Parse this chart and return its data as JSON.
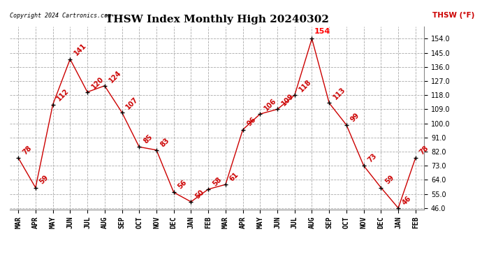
{
  "title": "THSW Index Monthly High 20240302",
  "copyright": "Copyright 2024 Cartronics.com",
  "legend_label": "THSW (°F)",
  "categories": [
    "MAR",
    "APR",
    "MAY",
    "JUN",
    "JUL",
    "AUG",
    "SEP",
    "OCT",
    "NOV",
    "DEC",
    "JAN",
    "FEB",
    "MAR",
    "APR",
    "MAY",
    "JUN",
    "JUL",
    "AUG",
    "SEP",
    "OCT",
    "NOV",
    "DEC",
    "JAN",
    "FEB"
  ],
  "values": [
    78,
    59,
    112,
    141,
    120,
    124,
    107,
    85,
    83,
    56,
    50,
    58,
    61,
    96,
    106,
    109,
    118,
    154,
    113,
    99,
    73,
    59,
    46,
    78
  ],
  "line_color": "#cc0000",
  "marker_color": "#000000",
  "label_color": "#cc0000",
  "highlight_index": 17,
  "ylim_min": 46.0,
  "ylim_max": 154.0,
  "yticks": [
    46.0,
    55.0,
    64.0,
    73.0,
    82.0,
    91.0,
    100.0,
    109.0,
    118.0,
    127.0,
    136.0,
    145.0,
    154.0
  ],
  "bg_color": "#ffffff",
  "grid_color": "#aaaaaa",
  "title_fontsize": 11,
  "tick_fontsize": 7,
  "label_fontsize": 7
}
